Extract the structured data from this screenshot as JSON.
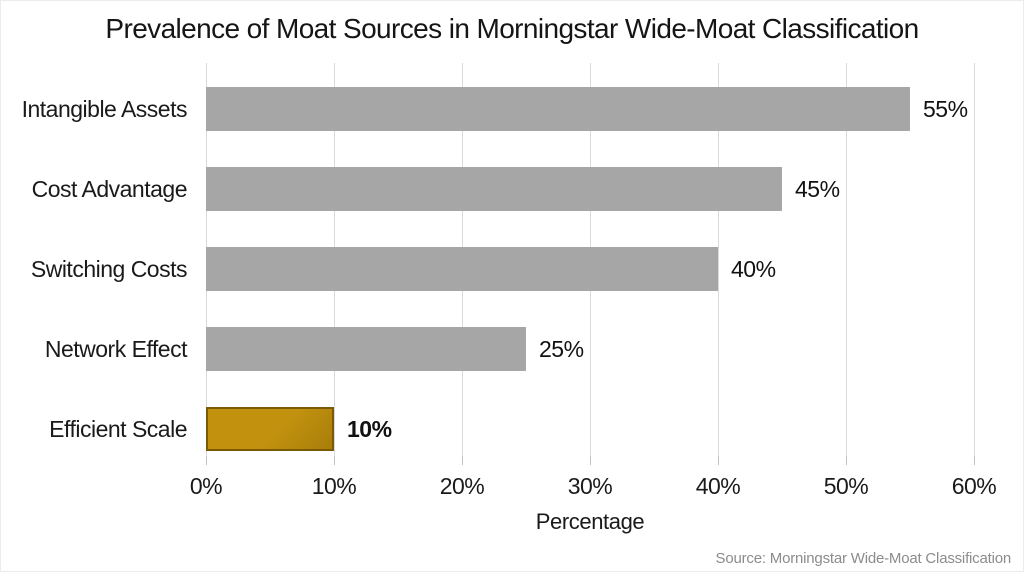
{
  "title": "Prevalence of Moat Sources in Morningstar Wide-Moat Classification",
  "source": "Source: Morningstar Wide-Moat Classification",
  "chart_data": {
    "type": "bar",
    "orientation": "horizontal",
    "title": "Prevalence of Moat Sources in Morningstar Wide-Moat Classification",
    "categories": [
      "Intangible Assets",
      "Cost Advantage",
      "Switching Costs",
      "Network Effect",
      "Efficient Scale"
    ],
    "values": [
      55,
      45,
      40,
      25,
      10
    ],
    "value_labels": [
      "55%",
      "45%",
      "40%",
      "25%",
      "10%"
    ],
    "highlight_index": 4,
    "highlighted_category": "Efficient Scale",
    "xlabel": "Percentage",
    "ylabel": "",
    "xlim": [
      0,
      60
    ],
    "x_tick_values": [
      0,
      10,
      20,
      30,
      40,
      50,
      60
    ],
    "x_tick_labels": [
      "0%",
      "10%",
      "20%",
      "30%",
      "40%",
      "50%",
      "60%"
    ],
    "grid": "vertical-only",
    "legend": "none",
    "colors": {
      "bar_color": "#a6a6a6",
      "highlight_fill": "#c2920f",
      "highlight_fill_dark": "#a87d0a",
      "highlight_border": "#7a5a04",
      "gridline": "#d9d9d9",
      "tick": "#c4c4c4",
      "text": "#1a1a1a",
      "source_text": "#8c8c8c"
    }
  }
}
